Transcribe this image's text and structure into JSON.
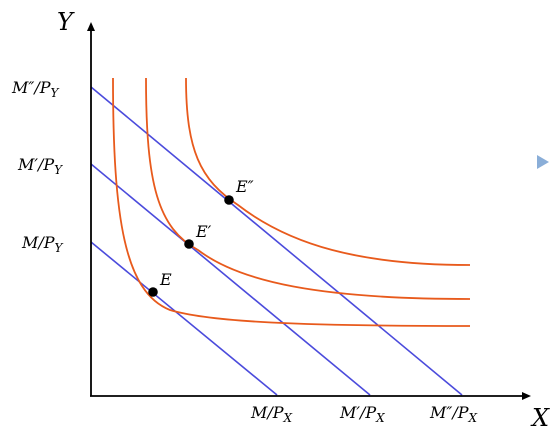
{
  "axes": {
    "x_name": "X",
    "y_name": "Y"
  },
  "budget_lines": [
    {
      "y_intercept_label": "M/P",
      "y_intercept_sub": "Y",
      "x_intercept_label": "M/P",
      "x_intercept_sub": "X"
    },
    {
      "y_intercept_label": "M′/P",
      "y_intercept_sub": "Y",
      "x_intercept_label": "M′/P",
      "x_intercept_sub": "X"
    },
    {
      "y_intercept_label": "M″/P",
      "y_intercept_sub": "Y",
      "x_intercept_label": "M″/P",
      "x_intercept_sub": "X"
    }
  ],
  "equilibria": [
    {
      "label": "E"
    },
    {
      "label": "E′"
    },
    {
      "label": "E″"
    }
  ],
  "colors": {
    "budget_line": "#4b4bdc",
    "indifference_curve": "#e85a1c",
    "axis": "#000000",
    "point": "#000000",
    "nav_arrow": "#8aaed8"
  },
  "icons": {
    "nav": "play-triangle-icon"
  }
}
